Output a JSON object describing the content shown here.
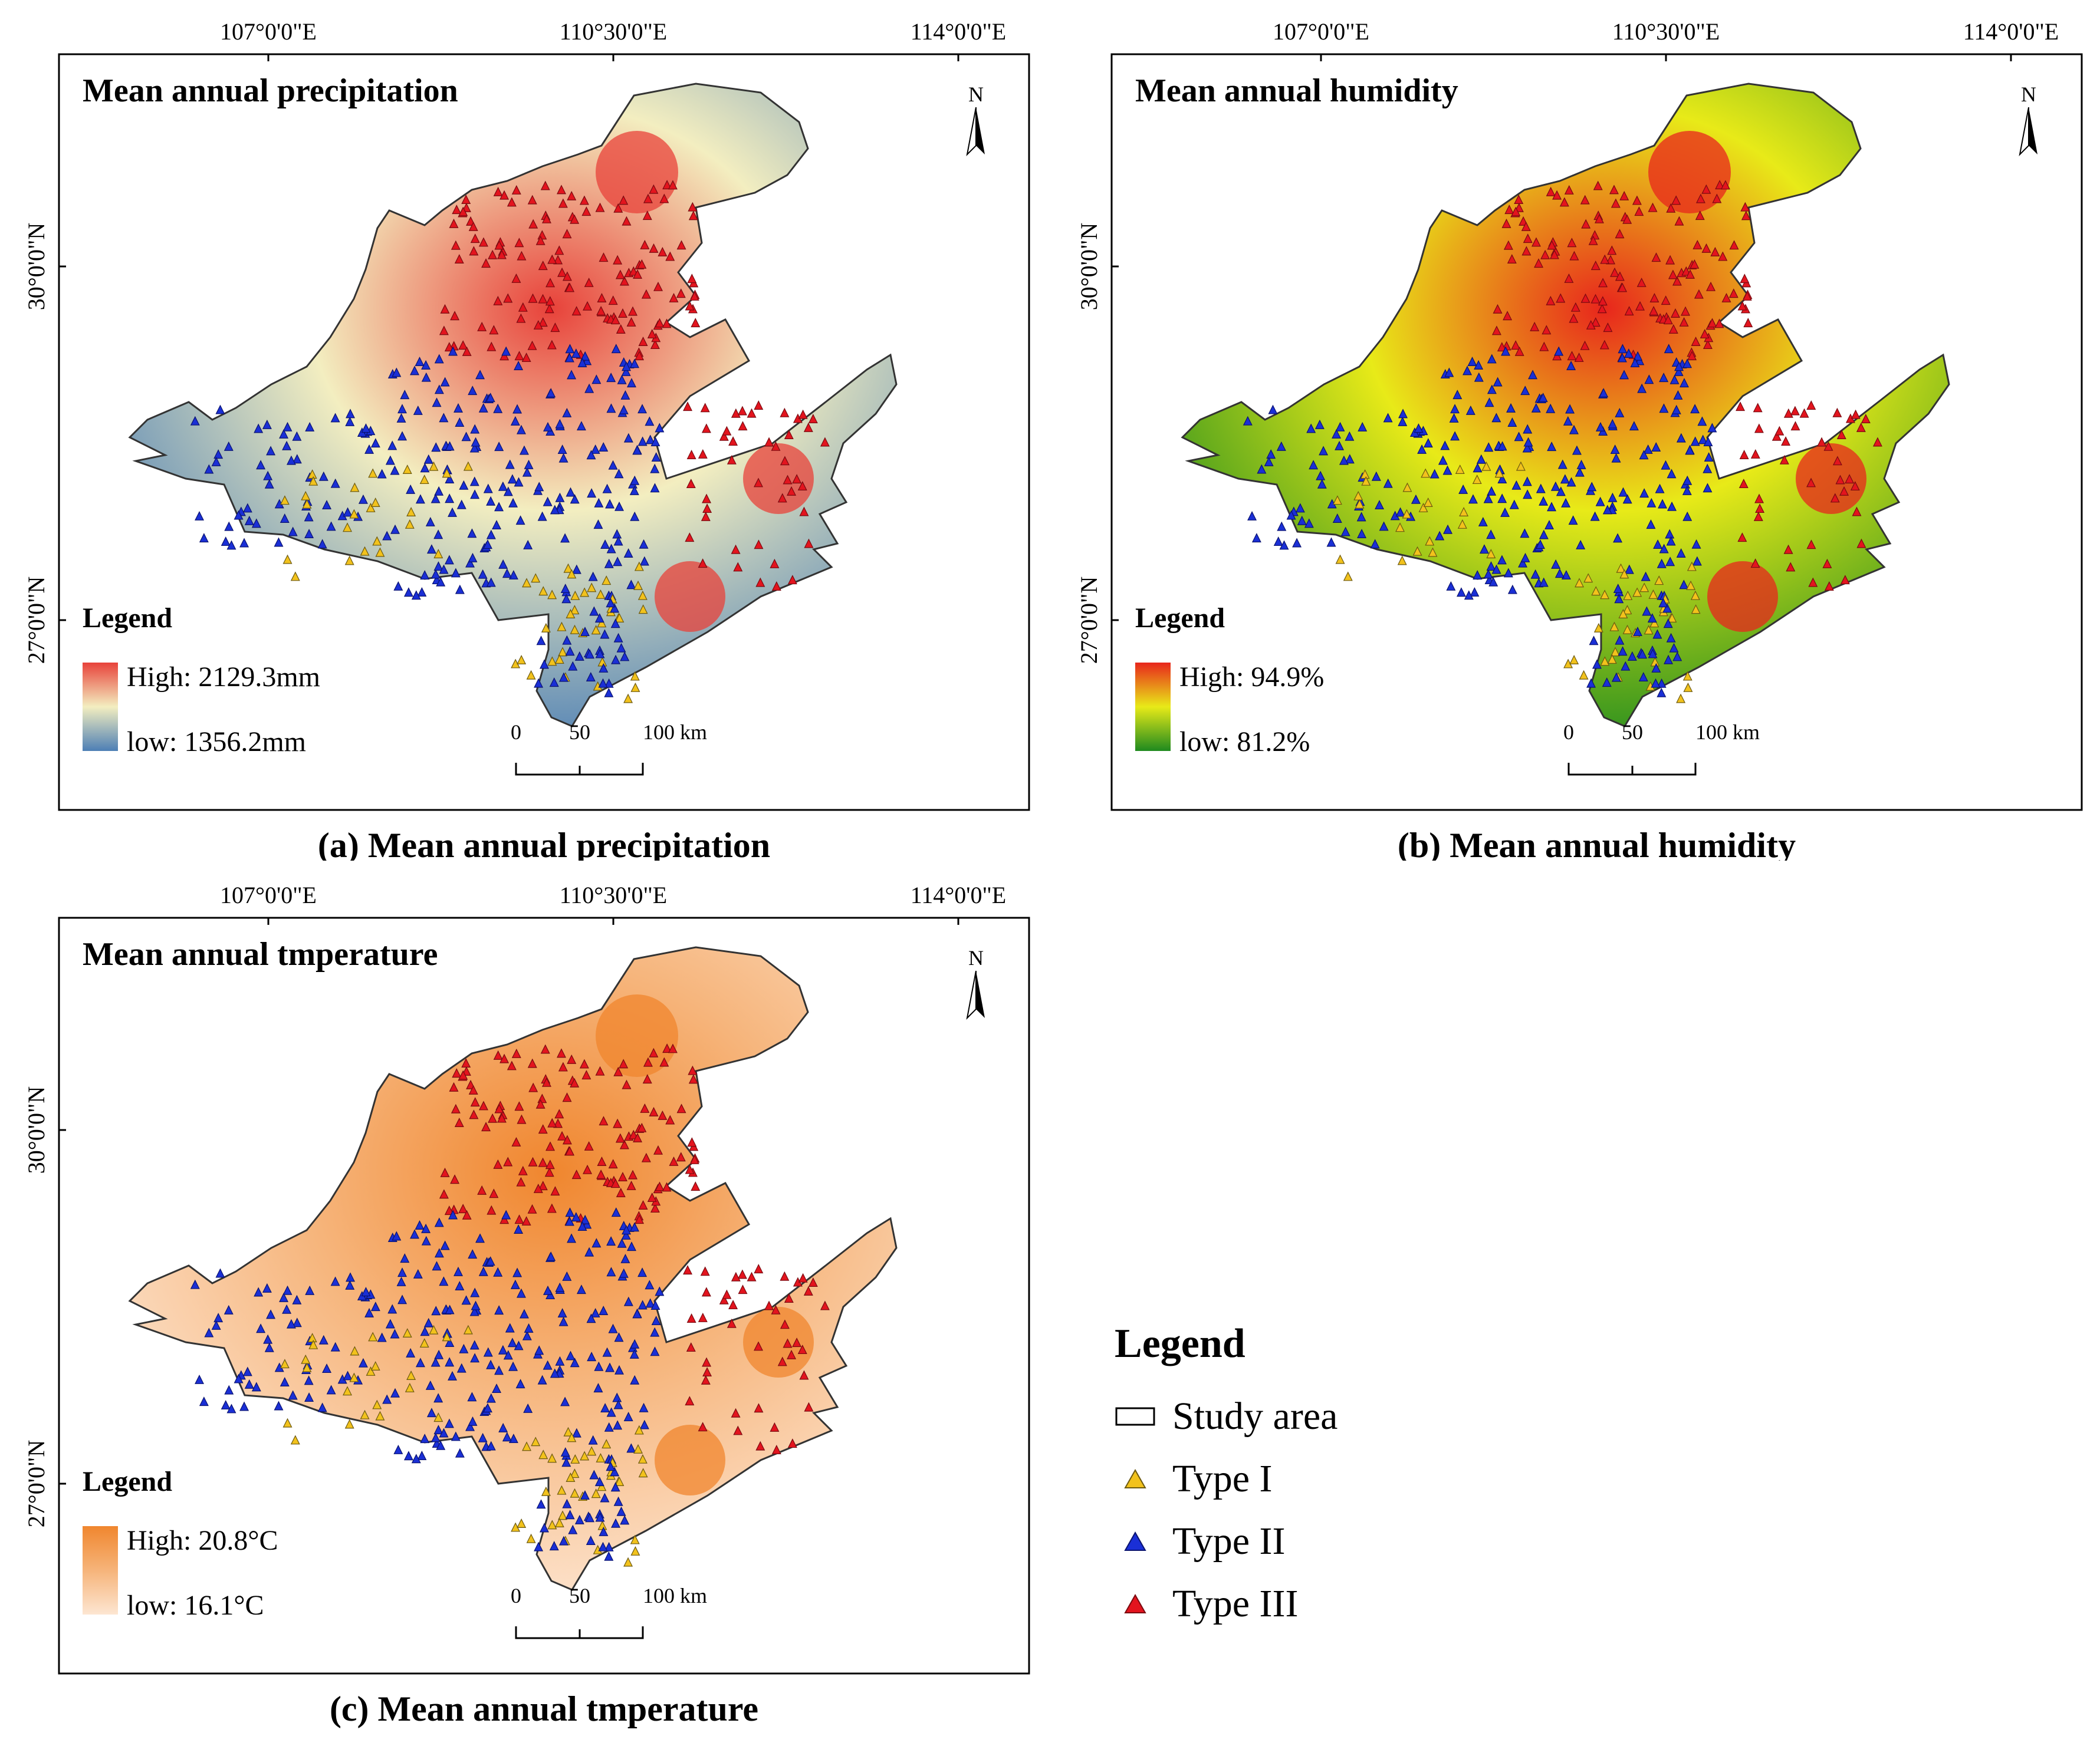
{
  "longitude_ticks": [
    "107°0'0\"E",
    "110°30'0\"E",
    "114°0'0\"E"
  ],
  "latitude_ticks": [
    "30°0'0\"N",
    "27°0'0\"N"
  ],
  "panels": [
    {
      "id": "a",
      "title": "Mean annual precipitation",
      "caption_letter": "(a)",
      "caption_text": "Mean annual precipitation",
      "legend_title": "Legend",
      "legend_high": "High: 2129.3mm",
      "legend_low": "low: 1356.2mm",
      "color_high": "#e8423a",
      "color_mid": "#f3eec0",
      "color_low": "#4d7fb5"
    },
    {
      "id": "b",
      "title": "Mean annual humidity",
      "caption_letter": "(b)",
      "caption_text": "Mean annual humidity",
      "legend_title": "Legend",
      "legend_high": "High: 94.9%",
      "legend_low": "low: 81.2%",
      "color_high": "#e8261c",
      "color_mid": "#e8ea18",
      "color_low": "#1f8a1f"
    },
    {
      "id": "c",
      "title": "Mean annual tmperature",
      "caption_letter": "(c)",
      "caption_text": "Mean annual tmperature",
      "legend_title": "Legend",
      "legend_high": "High: 20.8°C",
      "legend_low": "low: 16.1°C",
      "color_high": "#f0862e",
      "color_mid": "#f6b47a",
      "color_low": "#fde6d2"
    }
  ],
  "north_arrow_label": "N",
  "scale_bar": {
    "labels": [
      "0",
      "50",
      "100 km"
    ]
  },
  "main_legend": {
    "title": "Legend",
    "items": [
      {
        "label": "Study area",
        "symbol": "rectangle"
      },
      {
        "label": "Type I",
        "symbol": "triangle",
        "color": "#f2c21c"
      },
      {
        "label": "Type II",
        "symbol": "triangle",
        "color": "#1a2fd6"
      },
      {
        "label": "Type III",
        "symbol": "triangle",
        "color": "#e3141e"
      }
    ]
  }
}
